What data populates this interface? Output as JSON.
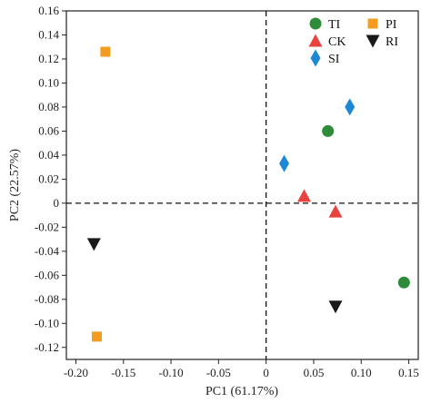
{
  "chart_data": {
    "type": "scatter",
    "title": "",
    "xlabel": "PC1 (61.17%)",
    "ylabel": "PC2 (22.57%)",
    "xlim": [
      -0.21,
      0.16
    ],
    "ylim": [
      -0.13,
      0.16
    ],
    "xticks": [
      -0.2,
      -0.15,
      -0.1,
      -0.05,
      0,
      0.05,
      0.1,
      0.15
    ],
    "xtick_labels": [
      "-0.20",
      "-0.15",
      "-0.10",
      "-0.05",
      "0",
      "0.05",
      "0.10",
      "0.15"
    ],
    "yticks": [
      -0.12,
      -0.1,
      -0.08,
      -0.06,
      -0.04,
      -0.02,
      0,
      0.02,
      0.04,
      0.06,
      0.08,
      0.1,
      0.12,
      0.14,
      0.16
    ],
    "ytick_labels": [
      "-0.12",
      "-0.10",
      "-0.08",
      "-0.06",
      "-0.04",
      "-0.02",
      "0",
      "0.02",
      "0.04",
      "0.06",
      "0.08",
      "0.10",
      "0.12",
      "0.14",
      "0.16"
    ],
    "reference_lines": {
      "x": 0,
      "y": 0,
      "style": "dashed"
    },
    "grid": false,
    "legend_position": "top-right",
    "series": [
      {
        "name": "TI",
        "marker": "circle",
        "color": "#2e8b3a",
        "points": [
          {
            "x": 0.065,
            "y": 0.06
          },
          {
            "x": 0.145,
            "y": -0.066
          }
        ]
      },
      {
        "name": "CK",
        "marker": "triangle-up",
        "color": "#e8433c",
        "points": [
          {
            "x": 0.04,
            "y": 0.006
          },
          {
            "x": 0.073,
            "y": -0.007
          }
        ]
      },
      {
        "name": "SI",
        "marker": "diamond",
        "color": "#1e88d6",
        "points": [
          {
            "x": 0.019,
            "y": 0.033
          },
          {
            "x": 0.088,
            "y": 0.08
          }
        ]
      },
      {
        "name": "PI",
        "marker": "square",
        "color": "#f39c1f",
        "points": [
          {
            "x": -0.169,
            "y": 0.126
          },
          {
            "x": -0.178,
            "y": -0.111
          }
        ]
      },
      {
        "name": "RI",
        "marker": "triangle-down",
        "color": "#1a1a1a",
        "points": [
          {
            "x": -0.181,
            "y": -0.034
          },
          {
            "x": 0.073,
            "y": -0.086
          }
        ]
      }
    ]
  }
}
